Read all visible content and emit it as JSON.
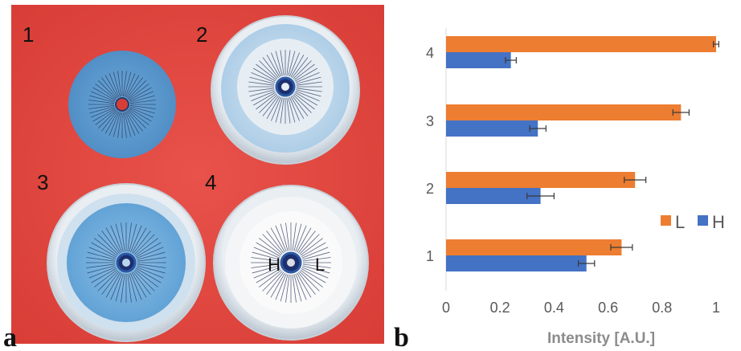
{
  "panel_a": {
    "letter": "a",
    "dish_labels": [
      "1",
      "2",
      "3",
      "4"
    ],
    "dish4_markers": {
      "left": "H",
      "right": "L"
    }
  },
  "panel_b": {
    "letter": "b"
  },
  "colors": {
    "L": "#ED7D31",
    "H": "#4472C4",
    "background_red": "#e0453c"
  },
  "chart_data": {
    "type": "bar",
    "orientation": "horizontal",
    "categories": [
      "1",
      "2",
      "3",
      "4"
    ],
    "series": [
      {
        "name": "L",
        "values": [
          0.65,
          0.7,
          0.87,
          1.0
        ],
        "errors": [
          0.04,
          0.04,
          0.03,
          0.01
        ]
      },
      {
        "name": "H",
        "values": [
          0.52,
          0.35,
          0.34,
          0.24
        ],
        "errors": [
          0.03,
          0.05,
          0.03,
          0.02
        ]
      }
    ],
    "xlabel": "Intensity [A.U.]",
    "ylabel": "",
    "xlim": [
      0,
      1
    ],
    "xticks": [
      "0",
      "0.2",
      "0.4",
      "0.6",
      "0.8",
      "1"
    ],
    "grid": false,
    "legend_position": "right"
  }
}
